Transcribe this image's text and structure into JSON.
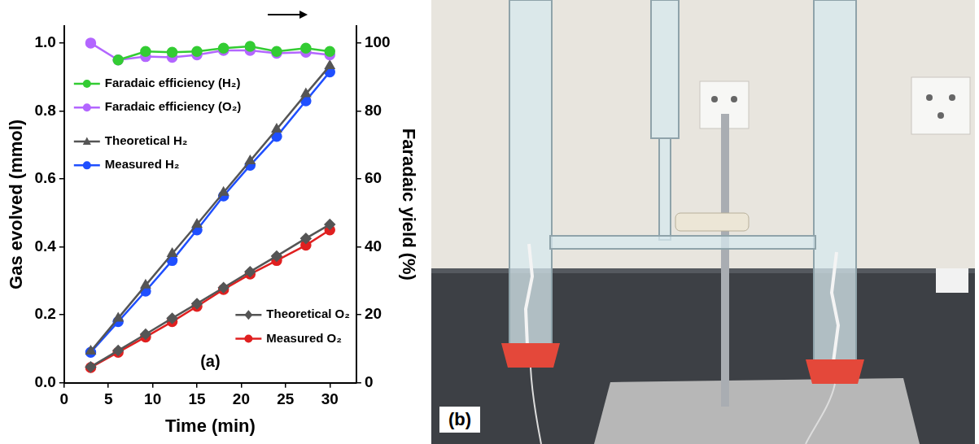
{
  "chart_data": {
    "type": "line",
    "x_label": "Time (min)",
    "y_label": "Gas evolved (mmol)",
    "y2_label": "Faradaic yield (%)",
    "annotations": [
      "(a)"
    ],
    "x": [
      3,
      6.1,
      9.2,
      12.2,
      15,
      18,
      21,
      24,
      27.3,
      30
    ],
    "xlim": [
      0,
      33
    ],
    "xticks": [
      0,
      5,
      10,
      15,
      20,
      25,
      30
    ],
    "ylim": [
      0,
      1.05
    ],
    "yticks": [
      {
        "value": 0,
        "label": "0.0"
      },
      {
        "value": 0.2,
        "label": "0.2"
      },
      {
        "value": 0.4,
        "label": "0.4"
      },
      {
        "value": 0.6,
        "label": "0.6"
      },
      {
        "value": 0.8,
        "label": "0.8"
      },
      {
        "value": 1,
        "label": "1.0"
      }
    ],
    "y2lim": [
      0,
      105
    ],
    "y2ticks": [
      0,
      20,
      40,
      60,
      80,
      100
    ],
    "grid": false,
    "legend": "inside",
    "series": [
      {
        "name": "Faradaic efficiency (H₂)",
        "color": "#33cc33",
        "axis": "y2",
        "marker": "circle",
        "line_style": "solid",
        "values": [
          null,
          95,
          97.5,
          97.3,
          97.5,
          98.5,
          99,
          97.5,
          98.5,
          97.5
        ]
      },
      {
        "name": "Faradaic efficiency (O₂)",
        "color": "#b366ff",
        "axis": "y2",
        "marker": "circle",
        "line_style": "solid",
        "values": [
          100,
          95,
          96,
          95.8,
          96.5,
          97.8,
          97.8,
          97,
          97.3,
          96.5
        ]
      },
      {
        "name": "Theoretical H₂",
        "color": "#555555",
        "marker": "triangle",
        "line_style": "solid",
        "values": [
          0.093,
          0.19,
          0.287,
          0.38,
          0.466,
          0.56,
          0.653,
          0.746,
          0.85,
          0.933
        ]
      },
      {
        "name": "Measured H₂",
        "color": "#1f4fff",
        "marker": "circle",
        "line_style": "solid",
        "values": [
          0.09,
          0.18,
          0.27,
          0.36,
          0.45,
          0.55,
          0.64,
          0.725,
          0.83,
          0.915
        ]
      },
      {
        "name": "Theoretical O₂",
        "color": "#555555",
        "marker": "diamond",
        "line_style": "solid",
        "values": [
          0.047,
          0.095,
          0.143,
          0.19,
          0.233,
          0.28,
          0.327,
          0.373,
          0.425,
          0.466
        ]
      },
      {
        "name": "Measured O₂",
        "color": "#e02020",
        "marker": "circle",
        "line_style": "solid",
        "values": [
          0.045,
          0.09,
          0.135,
          0.18,
          0.225,
          0.275,
          0.32,
          0.36,
          0.405,
          0.45
        ]
      }
    ]
  },
  "photo": {
    "label": "(b)"
  }
}
